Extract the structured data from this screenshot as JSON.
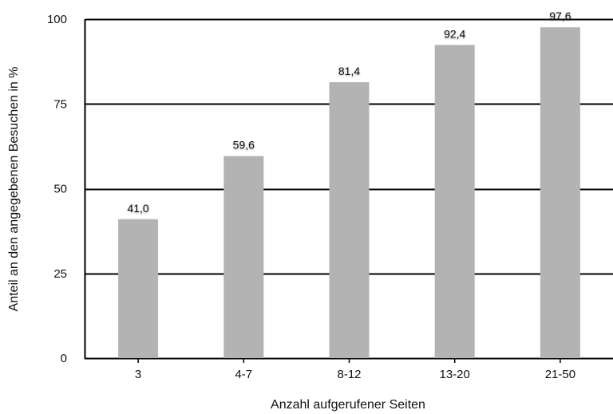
{
  "chart_data": {
    "type": "bar",
    "categories": [
      "3",
      "4-7",
      "8-12",
      "13-20",
      "21-50"
    ],
    "values": [
      41.0,
      59.6,
      81.4,
      92.4,
      97.6
    ],
    "data_labels": [
      "41,0",
      "59,6",
      "81,4",
      "92,4",
      "97,6"
    ],
    "xlabel": "Anzahl aufgerufener Seiten",
    "ylabel": "Anteil an den angegebenen Besuchen in %",
    "ylim": [
      0,
      100
    ],
    "yticks": [
      0,
      25,
      50,
      75,
      100
    ],
    "grid": true,
    "legend": "none",
    "colors": {
      "bar": "#b3b3b3",
      "grid": "#000000",
      "text": "#111111",
      "label_glow": "#ffffff"
    }
  }
}
